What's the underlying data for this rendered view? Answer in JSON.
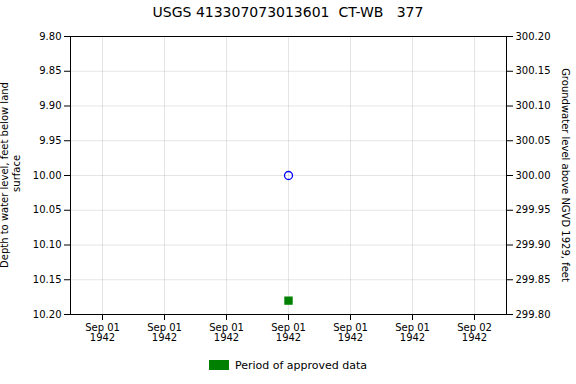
{
  "chart_data": {
    "type": "scatter",
    "title": "USGS 413307073013601  CT-WB   377",
    "ylabel": "Depth to water level, feet below land\n surface",
    "y2label": "Groundwater level above NGVD 1929, feet",
    "categories": [
      "Sep 01\n1942",
      "Sep 01\n1942",
      "Sep 01\n1942",
      "Sep 01\n1942",
      "Sep 01\n1942",
      "Sep 01\n1942",
      "Sep 02\n1942"
    ],
    "series": [
      {
        "color": "blue",
        "marker": "open_circle",
        "values": [
          null,
          null,
          null,
          10.0,
          null,
          null,
          null
        ]
      },
      {
        "name": "Period of approved data",
        "color": "green",
        "marker": "square",
        "values": [
          null,
          null,
          null,
          10.18,
          null,
          null,
          null
        ]
      }
    ],
    "ylim": [
      10.2,
      9.8
    ],
    "yticks": [
      {
        "value": 9.8,
        "label": "9.80"
      },
      9.85,
      {
        "value": 9.9,
        "label": "9.90"
      },
      9.95,
      {
        "value": 10.0,
        "label": "10.00"
      },
      10.05,
      {
        "value": 10.1,
        "label": "10.10"
      },
      10.15,
      {
        "value": 10.2,
        "label": "10.20"
      }
    ],
    "y2lim": [
      299.8,
      300.2
    ],
    "y2ticks": [
      {
        "value": 300.2,
        "label": "300.20"
      },
      300.15,
      {
        "value": 300.1,
        "label": "300.10"
      },
      300.05,
      {
        "value": 300.0,
        "label": "300.00"
      },
      299.95,
      {
        "value": 299.9,
        "label": "299.90"
      },
      299.85,
      {
        "value": 299.8,
        "label": "299.80"
      }
    ],
    "grid": true,
    "legend": "bottom"
  }
}
